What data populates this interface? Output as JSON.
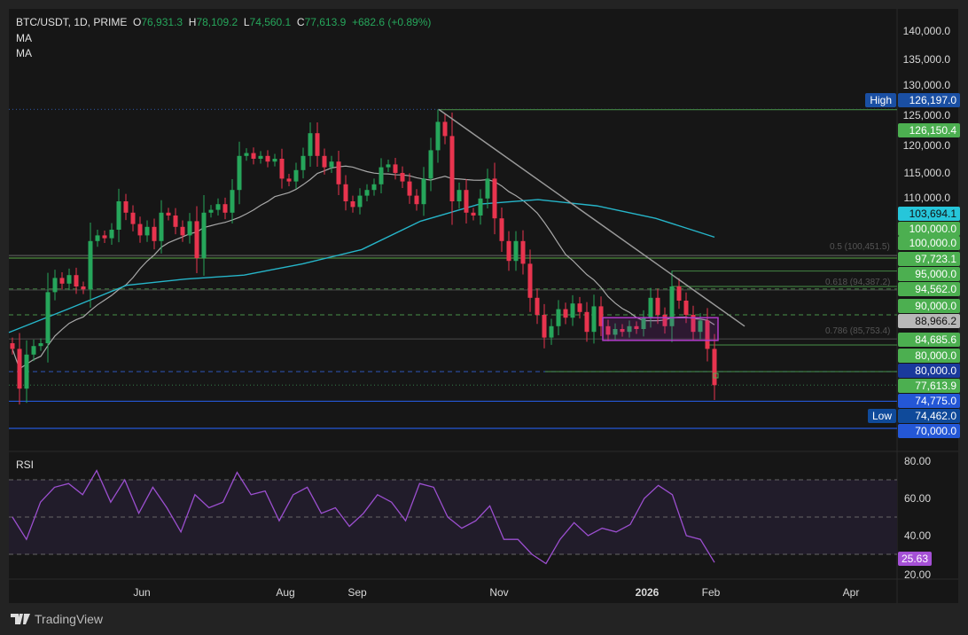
{
  "header": {
    "symbol": "BTC/USDT, 1D, PRIME",
    "o_label": "O",
    "o": "76,931.3",
    "h_label": "H",
    "h": "78,109.2",
    "l_label": "L",
    "l": "74,560.1",
    "c_label": "C",
    "c": "77,613.9",
    "change": "+682.6 (+0.89%)",
    "ma1": "MA",
    "ma2": "MA"
  },
  "rsi_label": "RSI",
  "branding": "TradingView",
  "colors": {
    "up": "#26a65b",
    "down": "#e8344e",
    "ma_fast": "#a8a8a8",
    "ma_slow": "#26b5c9",
    "rsi": "#9c4fd0",
    "rsi_band": "#211c2a"
  },
  "chart_data": [
    {
      "type": "candlestick",
      "symbol": "BTC/USDT",
      "interval": "1D",
      "x_ticks": [
        "Jun",
        "Aug",
        "Sep",
        "Nov",
        "2026",
        "Feb",
        "Apr"
      ],
      "y_ticks": [
        "140,000.0",
        "135,000.0",
        "130,000.0",
        "125,000.0",
        "120,000.0",
        "115,000.0",
        "110,000.0"
      ],
      "ylim": [
        67000,
        144000
      ],
      "closes": [
        84000,
        77000,
        83000,
        84500,
        85000,
        94000,
        96500,
        95500,
        97000,
        95000,
        94500,
        103000,
        104000,
        103500,
        105000,
        110000,
        108000,
        106000,
        104000,
        105500,
        103000,
        108000,
        107500,
        105500,
        104000,
        106500,
        100000,
        108000,
        108500,
        109500,
        108000,
        112000,
        118000,
        118500,
        117500,
        118000,
        117000,
        117500,
        114000,
        113500,
        115500,
        118000,
        122000,
        118000,
        116000,
        117000,
        113000,
        110000,
        109000,
        111000,
        112000,
        113000,
        116000,
        116500,
        115000,
        113500,
        111000,
        109500,
        114000,
        119000,
        124000,
        121500,
        110000,
        112000,
        108000,
        107500,
        110500,
        114000,
        107000,
        103000,
        99500,
        103000,
        99000,
        93000,
        90000,
        86000,
        88000,
        91000,
        89500,
        92000,
        90500,
        87000,
        91500,
        88000,
        86500,
        87500,
        87000,
        88000,
        87500,
        89500,
        93000,
        90000,
        88000,
        95000,
        92500,
        90000,
        87000,
        89000,
        84000,
        77613.9
      ],
      "ma_slow": [
        86900,
        91000,
        95200,
        96300,
        97000,
        99000,
        101500,
        106500,
        109500,
        110300,
        109200,
        107000,
        103694.1
      ],
      "price_tags": [
        {
          "label": "High",
          "value": "126,197.0",
          "color": "#1a4fa3"
        },
        {
          "value": "126,150.4",
          "color": "#4caf50"
        },
        {
          "value": "103,694.1",
          "color": "#26c6da",
          "dark_text": true
        },
        {
          "value": "100,000.0",
          "color": "#4caf50"
        },
        {
          "value": "100,000.0",
          "color": "#4caf50"
        },
        {
          "value": "97,723.1",
          "color": "#4caf50"
        },
        {
          "value": "95,000.0",
          "color": "#4caf50"
        },
        {
          "value": "94,562.0",
          "color": "#4caf50"
        },
        {
          "value": "90,000.0",
          "color": "#4caf50"
        },
        {
          "value": "88,966.2",
          "color": "#b8b8b8",
          "dark_text": true
        },
        {
          "value": "84,685.6",
          "color": "#4caf50"
        },
        {
          "value": "80,000.0",
          "color": "#4caf50"
        },
        {
          "value": "80,000.0",
          "color": "#1a3a9c"
        },
        {
          "value": "77,613.9",
          "color": "#4caf50"
        },
        {
          "value": "74,775.0",
          "color": "#2457d6"
        },
        {
          "label": "Low",
          "value": "74,462.0",
          "color": "#0f4a9a"
        },
        {
          "value": "70,000.0",
          "color": "#2457d6"
        }
      ],
      "levels": [
        {
          "price": 126197,
          "color": "#2a4a8a",
          "style": "dotted"
        },
        {
          "price": 126150.4,
          "color": "#3f7a3f",
          "style": "solid"
        },
        {
          "price": 100451.5,
          "color": "#555555",
          "style": "solid"
        },
        {
          "price": 100000,
          "color": "#4c8a3c",
          "style": "solid"
        },
        {
          "price": 97723.1,
          "color": "#3f7a3f",
          "style": "solid"
        },
        {
          "price": 94562,
          "color": "#3f7a3f",
          "style": "dashed"
        },
        {
          "price": 94387.2,
          "color": "#444444",
          "style": "solid"
        },
        {
          "price": 95000,
          "color": "#3f7a3f",
          "style": "solid"
        },
        {
          "price": 90000,
          "color": "#3f7a3f",
          "style": "dashed"
        },
        {
          "price": 85753.4,
          "color": "#444444",
          "style": "solid"
        },
        {
          "price": 84685.6,
          "color": "#3f7a3f",
          "style": "solid"
        },
        {
          "price": 80000,
          "color": "#2a4a9a",
          "style": "dashed"
        },
        {
          "price": 80000,
          "color": "#3f7a3f",
          "style": "solid"
        },
        {
          "price": 77613.9,
          "color": "#2f6a3f",
          "style": "dotted"
        },
        {
          "price": 74775,
          "color": "#2457d6",
          "style": "solid"
        },
        {
          "price": 70000,
          "color": "#2457d6",
          "style": "solid"
        }
      ],
      "fib_labels": [
        "0.5 (100,451.5)",
        "0.618 (94,387.2)",
        "0.786 (85,753.4)"
      ],
      "trendline": {
        "from_price": 126197,
        "to_price": 88000,
        "color": "#9a9a9a"
      },
      "range_box": {
        "top": 89500,
        "bottom": 85500,
        "color": "#b03cc8"
      }
    },
    {
      "type": "line",
      "title": "RSI",
      "ylim": [
        18,
        84
      ],
      "y_ticks": [
        "80.00",
        "60.00",
        "40.00",
        "20.00"
      ],
      "bands": [
        70,
        50,
        30
      ],
      "values": [
        50,
        38,
        58,
        66,
        68,
        62,
        75,
        58,
        70,
        52,
        66,
        55,
        42,
        62,
        55,
        58,
        74,
        62,
        64,
        48,
        62,
        66,
        52,
        55,
        45,
        52,
        62,
        58,
        48,
        68,
        66,
        50,
        44,
        48,
        56,
        38,
        38,
        30,
        25,
        38,
        47,
        40,
        44,
        42,
        46,
        60,
        67,
        62,
        40,
        38,
        25.63
      ],
      "last_value": "25.63"
    }
  ]
}
